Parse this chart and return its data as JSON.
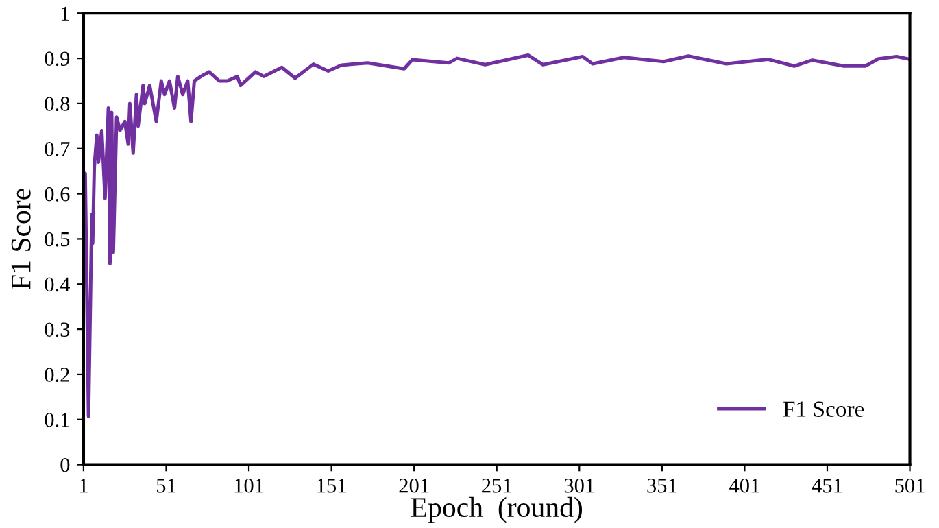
{
  "chart_data": {
    "type": "line",
    "xlabel": "Epoch  (round)",
    "ylabel": "F1 Score",
    "xlim": [
      1,
      501
    ],
    "xticks": [
      1,
      51,
      101,
      151,
      201,
      251,
      301,
      351,
      401,
      451,
      501
    ],
    "ylim": [
      0,
      1
    ],
    "yticks": [
      0,
      0.1,
      0.2,
      0.3,
      0.4,
      0.5,
      0.6,
      0.7,
      0.8,
      0.9,
      1
    ],
    "grid": false,
    "legend": "bottom right",
    "marker": "none",
    "line_style": "solid",
    "series": [
      {
        "name": "F1 Score",
        "color": "#7030a0",
        "x": [
          1,
          2,
          4,
          6,
          6.5,
          7.5,
          9,
          10,
          12,
          14,
          16,
          17,
          18,
          19,
          21,
          23,
          26,
          28,
          29,
          31,
          33,
          34,
          37,
          38,
          41,
          45,
          48,
          50,
          53,
          56,
          58,
          61,
          64,
          66,
          68,
          72,
          77,
          83,
          88,
          94,
          96,
          105,
          110,
          121,
          129,
          140,
          149,
          157,
          173,
          195,
          200,
          222,
          227,
          244,
          270,
          279,
          303,
          309,
          328,
          352,
          367,
          390,
          415,
          431,
          442,
          461,
          474,
          482,
          493,
          501
        ],
        "values": [
          0.55,
          0.645,
          0.107,
          0.555,
          0.49,
          0.66,
          0.73,
          0.67,
          0.74,
          0.59,
          0.79,
          0.445,
          0.78,
          0.47,
          0.77,
          0.74,
          0.76,
          0.71,
          0.8,
          0.69,
          0.82,
          0.75,
          0.84,
          0.8,
          0.84,
          0.76,
          0.85,
          0.82,
          0.85,
          0.79,
          0.86,
          0.82,
          0.85,
          0.76,
          0.85,
          0.86,
          0.87,
          0.85,
          0.85,
          0.86,
          0.84,
          0.87,
          0.86,
          0.88,
          0.856,
          0.887,
          0.872,
          0.885,
          0.89,
          0.877,
          0.897,
          0.89,
          0.9,
          0.886,
          0.907,
          0.886,
          0.904,
          0.888,
          0.902,
          0.893,
          0.905,
          0.888,
          0.898,
          0.883,
          0.896,
          0.883,
          0.883,
          0.899,
          0.904,
          0.898
        ]
      }
    ]
  }
}
